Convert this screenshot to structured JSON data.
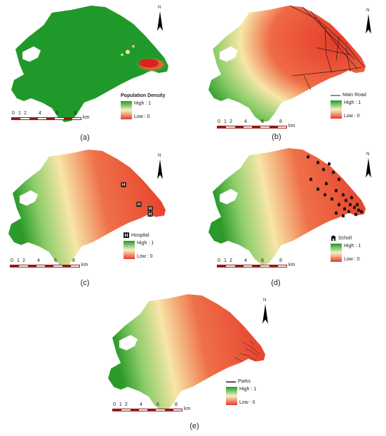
{
  "panels": [
    {
      "caption": "(a)",
      "legend_title": "Population Density",
      "layer_label": "",
      "high_label": "High : 1",
      "low_label": "Low : 0",
      "north_label": "N"
    },
    {
      "caption": "(b)",
      "legend_title": "",
      "layer_label": "Main Road",
      "high_label": "High : 1",
      "low_label": "Low : 0",
      "north_label": "N"
    },
    {
      "caption": "(c)",
      "legend_title": "",
      "layer_label": "Hospital",
      "high_label": "High : 1",
      "low_label": "Low : 0",
      "north_label": "N"
    },
    {
      "caption": "(d)",
      "legend_title": "",
      "layer_label": "Scholl",
      "high_label": "High : 1",
      "low_label": "Low : 0",
      "north_label": "N"
    },
    {
      "caption": "(e)",
      "legend_title": "",
      "layer_label": "Parks",
      "high_label": "High : 1",
      "low_label": "Low : 0",
      "north_label": "N"
    }
  ],
  "scale_bar": {
    "ticks": [
      "0",
      "1",
      "2",
      "4",
      "6",
      "8"
    ],
    "unit": "km"
  },
  "colors": {
    "high": "#e53b2a",
    "mid": "#f7e6a8",
    "low": "#2a9a2a",
    "pop_green": "#1f9a2a",
    "pop_red": "#d8231f",
    "road": "#2b1a1a"
  }
}
